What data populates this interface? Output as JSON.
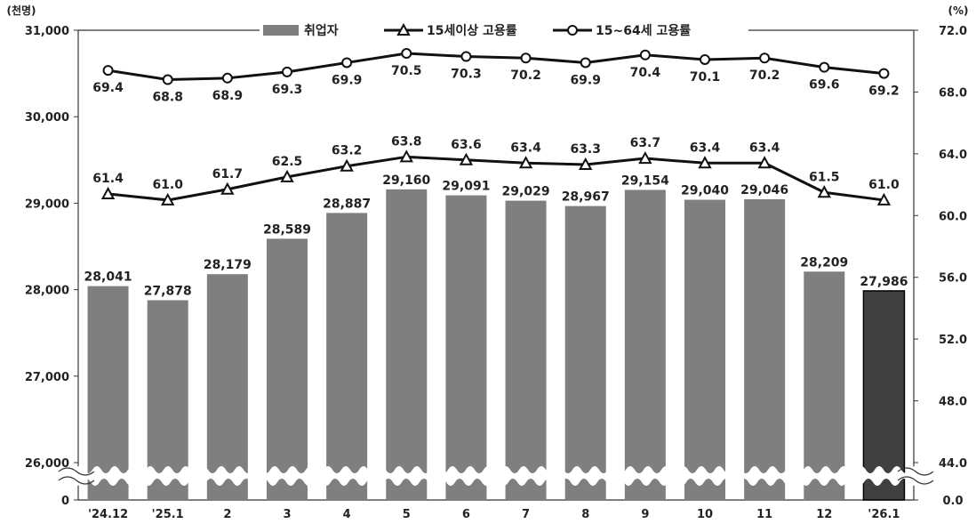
{
  "chart_data": {
    "type": "bar",
    "left_unit": "(천명)",
    "right_unit": "(%)",
    "categories": [
      "'24.12",
      "'25.1",
      "2",
      "3",
      "4",
      "5",
      "6",
      "7",
      "8",
      "9",
      "10",
      "11",
      "12",
      "'26.1"
    ],
    "y_left_ticks": [
      "31,000",
      "30,000",
      "29,000",
      "28,000",
      "27,000",
      "26,000",
      "0"
    ],
    "y_right_ticks": [
      "72.0",
      "68.0",
      "64.0",
      "60.0",
      "56.0",
      "52.0",
      "48.0",
      "44.0",
      "0.0"
    ],
    "ylim_left": [
      26000,
      31000
    ],
    "ylim_right": [
      44,
      72
    ],
    "axis_break": true,
    "series": [
      {
        "name": "취업자",
        "kind": "bar",
        "axis": "left",
        "values": [
          28041,
          27878,
          28179,
          28589,
          28887,
          29160,
          29091,
          29029,
          28967,
          29154,
          29040,
          29046,
          28209,
          27986
        ],
        "labels": [
          "28,041",
          "27,878",
          "28,179",
          "28,589",
          "28,887",
          "29,160",
          "29,091",
          "29,029",
          "28,967",
          "29,154",
          "29,040",
          "29,046",
          "28,209",
          "27,986"
        ],
        "color": "#7f7f7f",
        "highlight_color": "#404040"
      },
      {
        "name": "15세이상 고용률",
        "kind": "line",
        "marker": "triangle",
        "axis": "right",
        "values": [
          61.4,
          61.0,
          61.7,
          62.5,
          63.2,
          63.8,
          63.6,
          63.4,
          63.3,
          63.7,
          63.4,
          63.4,
          61.5,
          61.0
        ],
        "labels": [
          "61.4",
          "61.0",
          "61.7",
          "62.5",
          "63.2",
          "63.8",
          "63.6",
          "63.4",
          "63.3",
          "63.7",
          "63.4",
          "63.4",
          "61.5",
          "61.0"
        ],
        "color": "#111111"
      },
      {
        "name": "15~64세 고용률",
        "kind": "line",
        "marker": "circle",
        "axis": "right",
        "values": [
          69.4,
          68.8,
          68.9,
          69.3,
          69.9,
          70.5,
          70.3,
          70.2,
          69.9,
          70.4,
          70.1,
          70.2,
          69.6,
          69.2
        ],
        "labels": [
          "69.4",
          "68.8",
          "68.9",
          "69.3",
          "69.9",
          "70.5",
          "70.3",
          "70.2",
          "69.9",
          "70.4",
          "70.1",
          "70.2",
          "69.6",
          "69.2"
        ],
        "color": "#111111"
      }
    ],
    "legend": "top-center",
    "grid": false
  }
}
